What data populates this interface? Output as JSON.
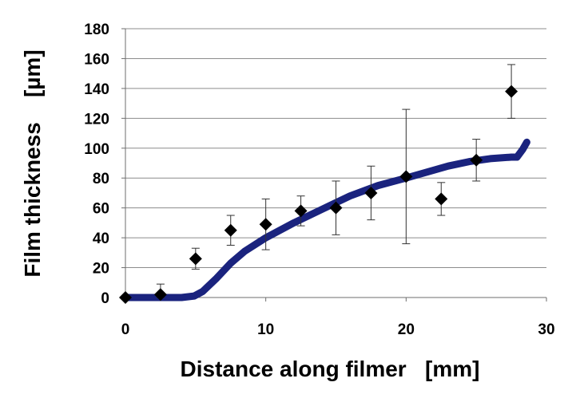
{
  "chart_data": {
    "type": "scatter",
    "title": "",
    "xlabel": "Distance along filmer   [mm]",
    "ylabel": "Film thickness    [µm]",
    "xlim": [
      0,
      30
    ],
    "ylim": [
      0,
      180
    ],
    "xticks": [
      0,
      10,
      20,
      30
    ],
    "yticks": [
      0,
      20,
      40,
      60,
      80,
      100,
      120,
      140,
      160,
      180
    ],
    "grid": "horizontal",
    "legend": "none",
    "series": [
      {
        "kind": "points_with_error_bars",
        "marker": "diamond",
        "color": "#000000",
        "points": [
          {
            "x": 0,
            "y": 0,
            "err": 0
          },
          {
            "x": 2.5,
            "y": 2,
            "err": 7
          },
          {
            "x": 5,
            "y": 26,
            "err": 7
          },
          {
            "x": 7.5,
            "y": 45,
            "err": 10
          },
          {
            "x": 10,
            "y": 49,
            "err": 17
          },
          {
            "x": 12.5,
            "y": 58,
            "err": 10
          },
          {
            "x": 15,
            "y": 60,
            "err": 18
          },
          {
            "x": 17.5,
            "y": 70,
            "err": 18
          },
          {
            "x": 20,
            "y": 81,
            "err": 45
          },
          {
            "x": 22.5,
            "y": 66,
            "err": 11
          },
          {
            "x": 25,
            "y": 92,
            "err": 14
          },
          {
            "x": 27.5,
            "y": 138,
            "err": 18
          }
        ]
      },
      {
        "kind": "line",
        "color": "#1a237e",
        "x": [
          0,
          2,
          4,
          4.9,
          5.5,
          6.5,
          7.5,
          8.5,
          10,
          12,
          14,
          16,
          18,
          20,
          21.5,
          23,
          24.5,
          26,
          27.5,
          27.9,
          28.3,
          28.6
        ],
        "y": [
          0,
          0,
          0,
          1,
          4,
          13,
          23,
          31,
          40,
          50,
          59,
          68,
          75,
          80,
          84,
          88,
          91,
          93,
          94,
          94,
          99,
          104
        ]
      }
    ]
  }
}
